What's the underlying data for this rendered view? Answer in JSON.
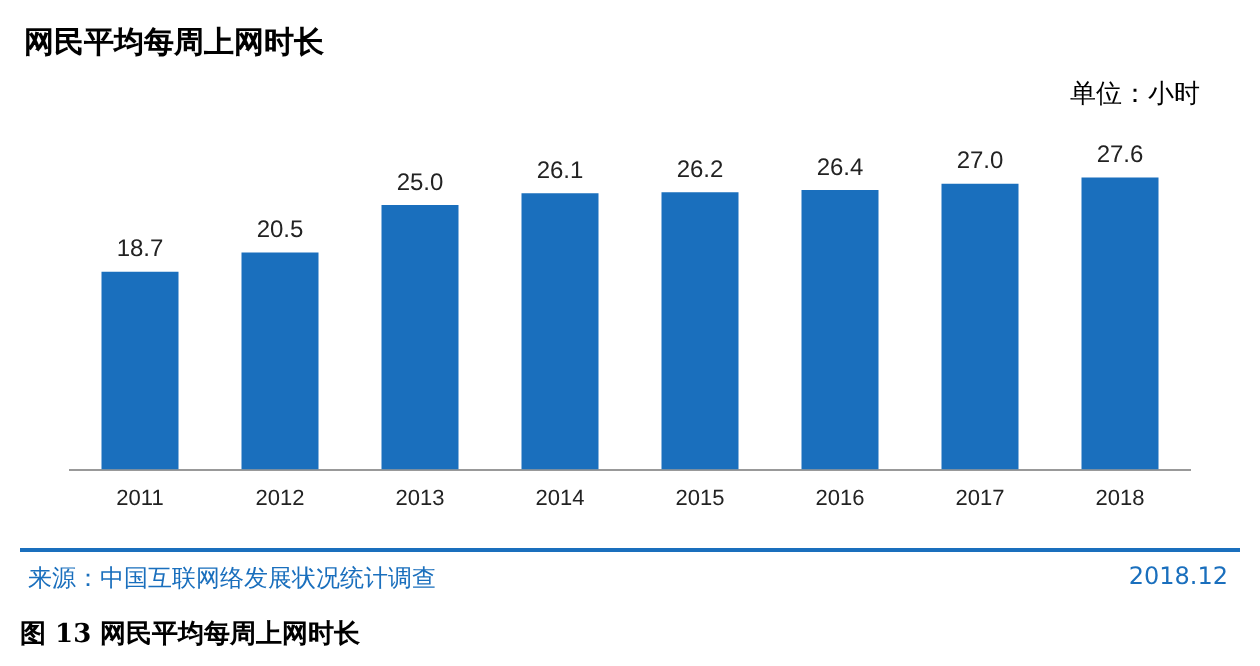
{
  "chart_data": {
    "type": "bar",
    "title": "网民平均每周上网时长",
    "categories": [
      "2011",
      "2012",
      "2013",
      "2014",
      "2015",
      "2016",
      "2017",
      "2018"
    ],
    "values": [
      18.7,
      20.5,
      25.0,
      26.1,
      26.2,
      26.4,
      27.0,
      27.6
    ],
    "value_labels": [
      "18.7",
      "20.5",
      "25.0",
      "26.1",
      "26.2",
      "26.4",
      "27.0",
      "27.6"
    ],
    "color": "#1a6fbd",
    "grid": false,
    "legend": false,
    "annotations": [
      "单位：小时",
      "来源：中国互联网络发展状况统计调查",
      "2018.12",
      "图 13  网民平均每周上网时长"
    ]
  }
}
